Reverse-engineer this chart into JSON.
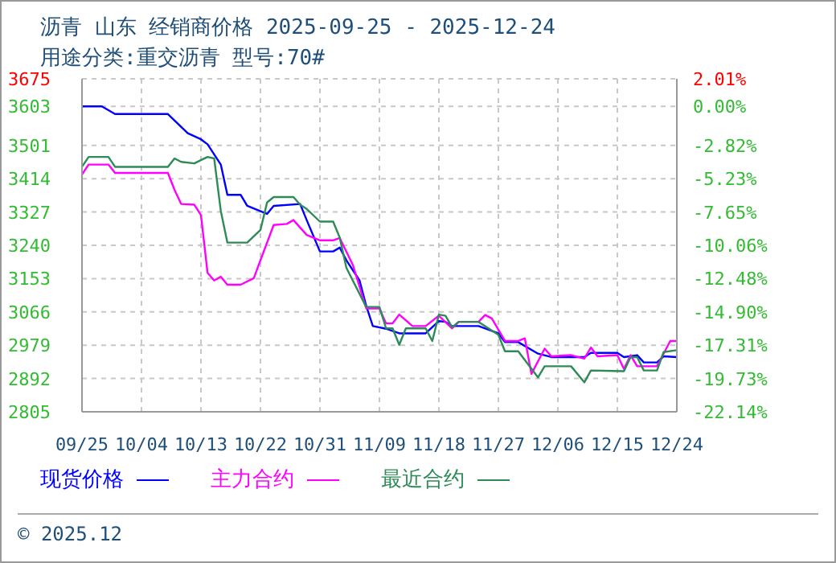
{
  "chart_data": {
    "type": "line",
    "title": "沥青  山东 经销商价格 2025-09-25 - 2025-12-24",
    "subtitle": "用途分类:重交沥青  型号:70#",
    "annotations": [
      "© 2025.12"
    ],
    "xlim": [
      "2025-09-25",
      "2025-12-24"
    ],
    "xticks": [
      {
        "value": "2025-09-25",
        "label": "09/25"
      },
      {
        "value": "2025-10-04",
        "label": "10/04"
      },
      {
        "value": "2025-10-13",
        "label": "10/13"
      },
      {
        "value": "2025-10-22",
        "label": "10/22"
      },
      {
        "value": "2025-10-31",
        "label": "10/31"
      },
      {
        "value": "2025-11-09",
        "label": "11/09"
      },
      {
        "value": "2025-11-18",
        "label": "11/18"
      },
      {
        "value": "2025-11-27",
        "label": "11/27"
      },
      {
        "value": "2025-12-06",
        "label": "12/06"
      },
      {
        "value": "2025-12-15",
        "label": "12/15"
      },
      {
        "value": "2025-12-24",
        "label": "12/24"
      }
    ],
    "ylim": [
      2805,
      3675
    ],
    "yticks": [
      2805,
      2892,
      2979,
      3066,
      3153,
      3240,
      3327,
      3414,
      3501,
      3603,
      3675
    ],
    "y2lim": [
      -22.14,
      2.01
    ],
    "y2ticks": [
      {
        "value": -22.14,
        "label": "-22.14%"
      },
      {
        "value": -19.73,
        "label": "-19.73%"
      },
      {
        "value": -17.31,
        "label": "-17.31%"
      },
      {
        "value": -14.9,
        "label": "-14.90%"
      },
      {
        "value": -12.48,
        "label": "-12.48%"
      },
      {
        "value": -10.06,
        "label": "-10.06%"
      },
      {
        "value": -7.65,
        "label": "-7.65%"
      },
      {
        "value": -5.23,
        "label": "-5.23%"
      },
      {
        "value": -2.82,
        "label": "-2.82%"
      },
      {
        "value": 0,
        "label": "0.00%"
      },
      {
        "value": 2.01,
        "label": "2.01%"
      }
    ],
    "grid": true,
    "legend": "bottom",
    "marker": "none",
    "line_style": "solid",
    "series": [
      {
        "name": "现货价格",
        "color": "#0000ff",
        "x": [
          "2025-09-25",
          "2025-09-28",
          "2025-09-30",
          "2025-10-08",
          "2025-10-11",
          "2025-10-13",
          "2025-10-14",
          "2025-10-16",
          "2025-10-17",
          "2025-10-19",
          "2025-10-20",
          "2025-10-23",
          "2025-10-24",
          "2025-10-28",
          "2025-10-29",
          "2025-10-31",
          "2025-11-02",
          "2025-11-03",
          "2025-11-04",
          "2025-11-06",
          "2025-11-07",
          "2025-11-08",
          "2025-11-10",
          "2025-11-12",
          "2025-11-16",
          "2025-11-18",
          "2025-11-19",
          "2025-11-20",
          "2025-11-24",
          "2025-11-27",
          "2025-11-28",
          "2025-11-30",
          "2025-12-03",
          "2025-12-05",
          "2025-12-10",
          "2025-12-11",
          "2025-12-15",
          "2025-12-16",
          "2025-12-18",
          "2025-12-19",
          "2025-12-21",
          "2025-12-22",
          "2025-12-24"
        ],
        "values": [
          3603,
          3603,
          3583,
          3583,
          3533,
          3517,
          3504,
          3451,
          3372,
          3372,
          3343,
          3322,
          3343,
          3348,
          3306,
          3224,
          3224,
          3234,
          3201,
          3148,
          3082,
          3029,
          3022,
          3010,
          3010,
          3042,
          3040,
          3029,
          3029,
          3010,
          2987,
          2987,
          2957,
          2948,
          2948,
          2959,
          2959,
          2948,
          2953,
          2934,
          2934,
          2950,
          2948
        ]
      },
      {
        "name": "主力合约",
        "color": "#ff00ff",
        "x": [
          "2025-09-25",
          "2025-09-26",
          "2025-09-29",
          "2025-09-30",
          "2025-10-08",
          "2025-10-09",
          "2025-10-10",
          "2025-10-12",
          "2025-10-13",
          "2025-10-14",
          "2025-10-15",
          "2025-10-16",
          "2025-10-17",
          "2025-10-19",
          "2025-10-21",
          "2025-10-22",
          "2025-10-24",
          "2025-10-26",
          "2025-10-27",
          "2025-10-29",
          "2025-10-31",
          "2025-11-02",
          "2025-11-03",
          "2025-11-05",
          "2025-11-07",
          "2025-11-09",
          "2025-11-10",
          "2025-11-11",
          "2025-11-12",
          "2025-11-14",
          "2025-11-16",
          "2025-11-18",
          "2025-11-20",
          "2025-11-21",
          "2025-11-24",
          "2025-11-25",
          "2025-11-26",
          "2025-11-28",
          "2025-11-30",
          "2025-12-01",
          "2025-12-02",
          "2025-12-04",
          "2025-12-05",
          "2025-12-08",
          "2025-12-10",
          "2025-12-11",
          "2025-12-12",
          "2025-12-15",
          "2025-12-16",
          "2025-12-17",
          "2025-12-18",
          "2025-12-21",
          "2025-12-23",
          "2025-12-24"
        ],
        "values": [
          3425,
          3451,
          3451,
          3429,
          3429,
          3385,
          3348,
          3346,
          3319,
          3168,
          3148,
          3158,
          3137,
          3137,
          3154,
          3201,
          3293,
          3296,
          3306,
          3267,
          3253,
          3253,
          3259,
          3188,
          3075,
          3075,
          3036,
          3036,
          3059,
          3029,
          3029,
          3056,
          3023,
          3040,
          3040,
          3058,
          3049,
          2990,
          2990,
          2997,
          2904,
          2970,
          2950,
          2953,
          2944,
          2973,
          2950,
          2953,
          2917,
          2953,
          2924,
          2924,
          2990,
          2990
        ]
      },
      {
        "name": "最近合约",
        "color": "#2e8b57",
        "x": [
          "2025-09-25",
          "2025-09-26",
          "2025-09-29",
          "2025-09-30",
          "2025-10-08",
          "2025-10-09",
          "2025-10-10",
          "2025-10-12",
          "2025-10-14",
          "2025-10-15",
          "2025-10-16",
          "2025-10-17",
          "2025-10-20",
          "2025-10-22",
          "2025-10-23",
          "2025-10-24",
          "2025-10-27",
          "2025-10-28",
          "2025-10-29",
          "2025-10-31",
          "2025-11-02",
          "2025-11-03",
          "2025-11-04",
          "2025-11-07",
          "2025-11-09",
          "2025-11-10",
          "2025-11-11",
          "2025-11-12",
          "2025-11-13",
          "2025-11-16",
          "2025-11-17",
          "2025-11-18",
          "2025-11-19",
          "2025-11-20",
          "2025-11-21",
          "2025-11-24",
          "2025-11-27",
          "2025-11-28",
          "2025-11-30",
          "2025-12-03",
          "2025-12-04",
          "2025-12-08",
          "2025-12-10",
          "2025-12-11",
          "2025-12-16",
          "2025-12-17",
          "2025-12-18",
          "2025-12-19",
          "2025-12-21",
          "2025-12-22",
          "2025-12-24"
        ],
        "values": [
          3445,
          3471,
          3471,
          3445,
          3445,
          3467,
          3458,
          3454,
          3471,
          3467,
          3330,
          3247,
          3247,
          3280,
          3352,
          3366,
          3366,
          3346,
          3335,
          3302,
          3302,
          3260,
          3181,
          3079,
          3079,
          3023,
          3023,
          2980,
          3023,
          3023,
          2990,
          3059,
          3056,
          3026,
          3040,
          3040,
          3006,
          2963,
          2963,
          2895,
          2924,
          2924,
          2882,
          2913,
          2911,
          2948,
          2948,
          2913,
          2913,
          2961,
          2966
        ]
      }
    ]
  }
}
